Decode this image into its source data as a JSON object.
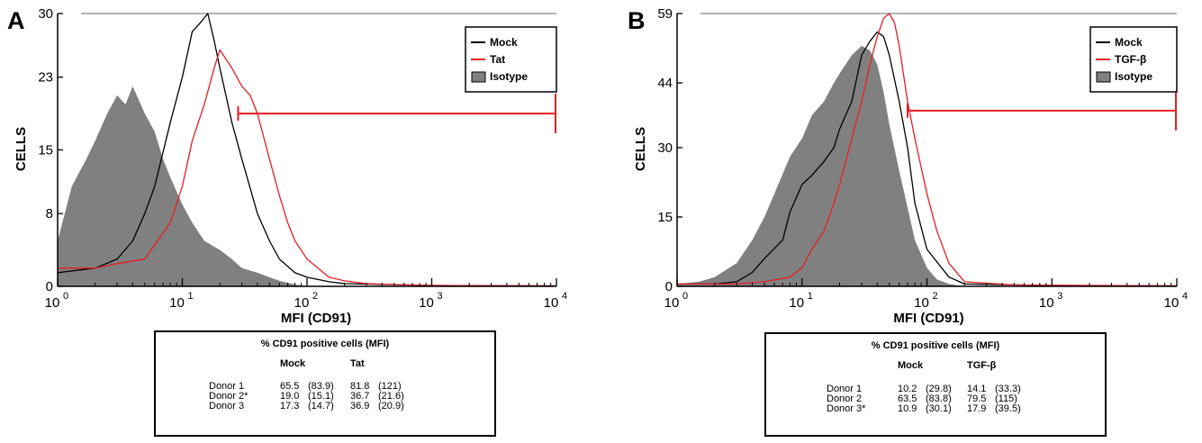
{
  "chart_data": [
    {
      "type": "histogram",
      "panel_label": "A",
      "xlabel": "MFI (CD91)",
      "ylabel": "CELLS",
      "x_scale": "log",
      "xlim": [
        1,
        10000
      ],
      "ylim": [
        0,
        30
      ],
      "x_tick_labels": [
        "10",
        "10",
        "10",
        "10",
        "10"
      ],
      "x_tick_exponents": [
        "0",
        "1",
        "2",
        "3",
        "4"
      ],
      "y_tick_labels": [
        "0",
        "8",
        "15",
        "23",
        "30"
      ],
      "legend": [
        {
          "name": "Mock",
          "color": "#000000",
          "style": "line"
        },
        {
          "name": "Tat",
          "color": "#e31e24",
          "style": "line"
        },
        {
          "name": "Isotype",
          "color": "#808080",
          "style": "filled"
        }
      ],
      "legend_position": "top-right",
      "marker_gate": {
        "x_start": 28,
        "x_end": 10000,
        "y": 19
      },
      "series": [
        {
          "name": "Isotype",
          "x": [
            1,
            1.3,
            1.7,
            2,
            2.5,
            3,
            3.5,
            4,
            5,
            6,
            7,
            8,
            10,
            12,
            15,
            20,
            25,
            30,
            40,
            50,
            60,
            70,
            80,
            100
          ],
          "y": [
            5,
            11,
            14,
            16,
            19,
            21,
            20,
            22,
            19,
            17,
            14,
            12,
            9,
            7,
            5,
            4,
            3,
            2,
            1.5,
            1,
            0.6,
            0.4,
            0.2,
            0
          ]
        },
        {
          "name": "Mock",
          "x": [
            1,
            1.5,
            2,
            3,
            4,
            5,
            6,
            8,
            10,
            12,
            14,
            16,
            18,
            20,
            25,
            30,
            40,
            50,
            60,
            80,
            100,
            150,
            200,
            1000,
            10000
          ],
          "y": [
            1.5,
            1.8,
            2,
            3,
            5,
            8,
            11,
            18,
            23,
            28,
            29,
            30,
            27,
            24,
            18,
            14,
            8,
            5,
            3,
            1.5,
            1,
            0.5,
            0.3,
            0.1,
            0.05
          ]
        },
        {
          "name": "Tat",
          "x": [
            1,
            2,
            3,
            5,
            8,
            10,
            12,
            15,
            18,
            20,
            25,
            30,
            35,
            40,
            50,
            60,
            70,
            80,
            100,
            150,
            200,
            300,
            500,
            1000,
            10000
          ],
          "y": [
            2,
            2,
            2.5,
            3,
            7,
            11,
            16,
            20,
            24,
            26,
            24,
            22,
            21,
            19,
            14,
            10,
            7,
            5,
            3,
            1,
            0.6,
            0.3,
            0.2,
            0.1,
            0.05
          ]
        }
      ],
      "table": {
        "title": "% CD91 positive cells (MFI)",
        "columns": [
          "Mock",
          "Tat"
        ],
        "rows": [
          {
            "label": "Donor 1",
            "v1": "65.5",
            "m1": "(83.9)",
            "v2": "81.8",
            "m2": "(121)"
          },
          {
            "label": "Donor 2*",
            "v1": "19.0",
            "m1": "(15.1)",
            "v2": "36.7",
            "m2": "(21.6)"
          },
          {
            "label": "Donor 3",
            "v1": "17.3",
            "m1": "(14.7)",
            "v2": "36.9",
            "m2": "(20.9)"
          }
        ]
      }
    },
    {
      "type": "histogram",
      "panel_label": "B",
      "xlabel": "MFI (CD91)",
      "ylabel": "CELLS",
      "x_scale": "log",
      "xlim": [
        1,
        10000
      ],
      "ylim": [
        0,
        59
      ],
      "x_tick_labels": [
        "10",
        "10",
        "10",
        "10",
        "10"
      ],
      "x_tick_exponents": [
        "0",
        "1",
        "2",
        "3",
        "4"
      ],
      "y_tick_labels": [
        "0",
        "15",
        "30",
        "44",
        "59"
      ],
      "legend": [
        {
          "name": "Mock",
          "color": "#000000",
          "style": "line"
        },
        {
          "name": "TGF-β",
          "color": "#e31e24",
          "style": "line"
        },
        {
          "name": "Isotype",
          "color": "#808080",
          "style": "filled"
        }
      ],
      "legend_position": "top-right",
      "marker_gate": {
        "x_start": 70,
        "x_end": 10000,
        "y": 38
      },
      "series": [
        {
          "name": "Isotype",
          "x": [
            1,
            1.5,
            2,
            3,
            4,
            5,
            6,
            8,
            10,
            12,
            15,
            18,
            20,
            25,
            30,
            35,
            40,
            45,
            50,
            60,
            70,
            80,
            100,
            120,
            150,
            200
          ],
          "y": [
            0.5,
            1,
            2,
            5,
            10,
            15,
            20,
            28,
            32,
            37,
            40,
            44,
            46,
            50,
            52,
            51,
            48,
            42,
            35,
            25,
            17,
            10,
            4,
            1.5,
            0.5,
            0
          ]
        },
        {
          "name": "Mock",
          "x": [
            1,
            2,
            3,
            4,
            5,
            7,
            8,
            10,
            12,
            15,
            18,
            20,
            25,
            30,
            35,
            40,
            45,
            50,
            60,
            70,
            80,
            100,
            150,
            200,
            1000,
            10000
          ],
          "y": [
            0.5,
            0.5,
            1,
            3,
            6,
            10,
            16,
            22,
            24,
            27,
            30,
            34,
            40,
            50,
            53,
            55,
            54,
            50,
            40,
            30,
            18,
            8,
            2,
            0.5,
            0.2,
            0.1
          ]
        },
        {
          "name": "TGF-β",
          "x": [
            1,
            3,
            5,
            8,
            10,
            12,
            15,
            18,
            20,
            25,
            30,
            35,
            40,
            45,
            50,
            55,
            60,
            70,
            80,
            100,
            120,
            150,
            200,
            500,
            10000
          ],
          "y": [
            0.5,
            0.5,
            1,
            2,
            4,
            8,
            12,
            18,
            22,
            32,
            40,
            48,
            54,
            58,
            59,
            57,
            52,
            40,
            32,
            20,
            12,
            5,
            1,
            0.3,
            0.1
          ]
        }
      ],
      "table": {
        "title": "% CD91 positive cells (MFI)",
        "columns": [
          "Mock",
          "TGF-β"
        ],
        "rows": [
          {
            "label": "Donor 1",
            "v1": "10.2",
            "m1": "(29.8)",
            "v2": "14.1",
            "m2": "(33.3)"
          },
          {
            "label": "Donor 2",
            "v1": "63.5",
            "m1": "(83.8)",
            "v2": "79.5",
            "m2": "(115)"
          },
          {
            "label": "Donor 3*",
            "v1": "10.9",
            "m1": "(30.1)",
            "v2": "17.9",
            "m2": "(39.5)"
          }
        ]
      }
    }
  ]
}
